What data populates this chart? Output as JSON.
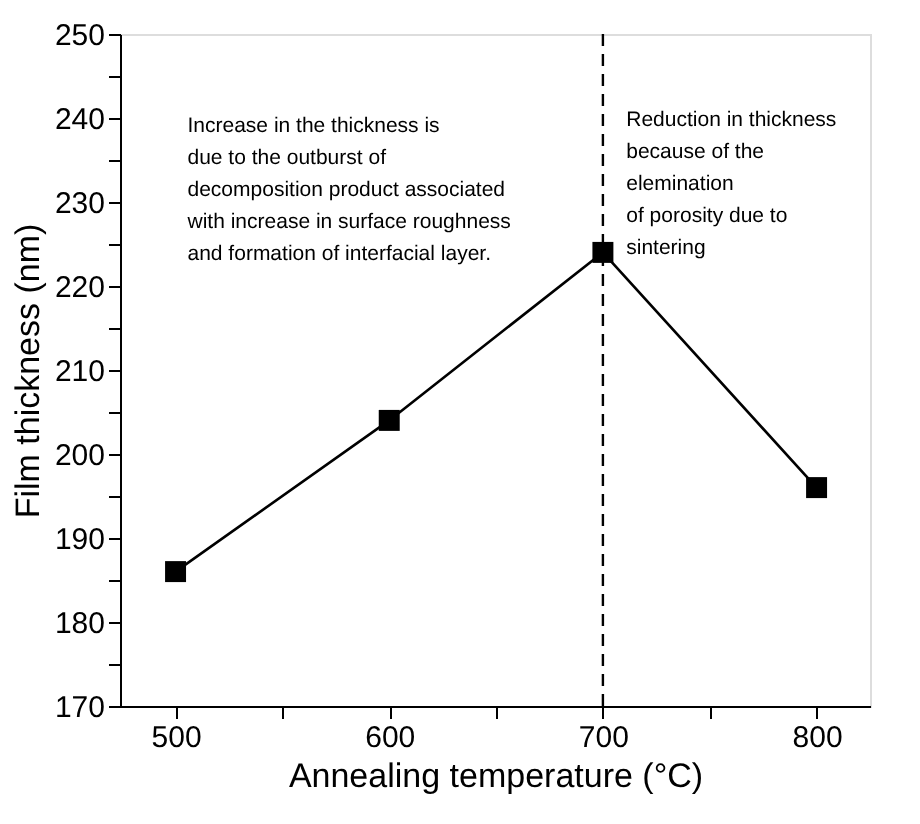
{
  "chart_data": {
    "type": "line",
    "xlabel": "Annealing temperature (°C)",
    "ylabel": "Film thickness (nm)",
    "x": [
      500,
      600,
      700,
      800
    ],
    "series": [
      {
        "color": "#000000",
        "values": [
          186,
          204,
          224,
          196
        ]
      }
    ],
    "xlim": [
      474,
      825
    ],
    "ylim": [
      170,
      250
    ],
    "xticks": [
      500,
      {
        "value": 550,
        "label": null
      },
      600,
      {
        "value": 650,
        "label": null
      },
      700,
      {
        "value": 750,
        "label": null
      },
      800
    ],
    "yticks": [
      170,
      {
        "value": 175,
        "label": null
      },
      180,
      {
        "value": 185,
        "label": null
      },
      190,
      {
        "value": 195,
        "label": null
      },
      200,
      {
        "value": 205,
        "label": null
      },
      210,
      {
        "value": 215,
        "label": null
      },
      220,
      {
        "value": 225,
        "label": null
      },
      230,
      {
        "value": 235,
        "label": null
      },
      240,
      {
        "value": 245,
        "label": null
      },
      250
    ],
    "ref_lines": [
      {
        "axis": "x",
        "value": 700,
        "color": "#000000",
        "line_style": "dashed"
      }
    ],
    "annotations": [
      "Increase in the thickness is\ndue to the outburst of\ndecomposition product associated\nwith increase in surface roughness\nand formation of interfacial layer.",
      "Reduction in thickness\nbecause of the\nelemination\nof porosity due to\nsintering"
    ],
    "marker": "square",
    "line_style": "solid",
    "grid": false
  }
}
